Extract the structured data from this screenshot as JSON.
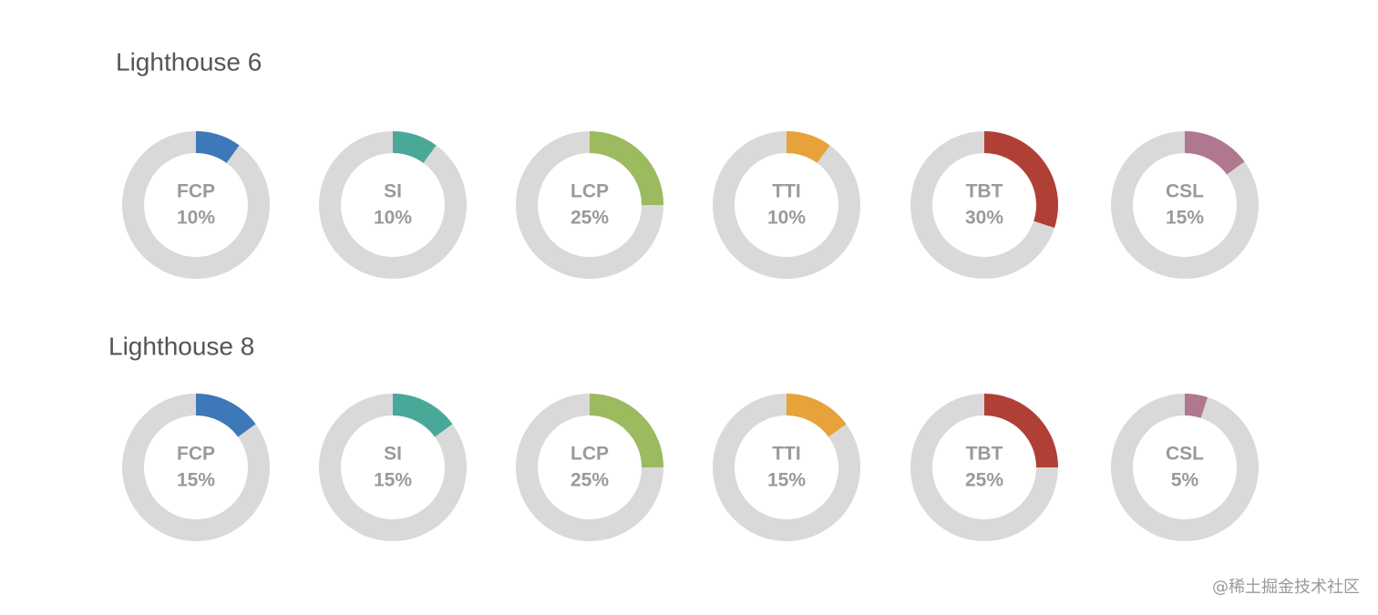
{
  "chart_data": [
    {
      "type": "donut",
      "title": "Lighthouse 6",
      "categories": [
        "FCP",
        "SI",
        "LCP",
        "TTI",
        "TBT",
        "CSL"
      ],
      "values": [
        10,
        10,
        25,
        10,
        30,
        15
      ],
      "value_labels": [
        "10%",
        "10%",
        "25%",
        "10%",
        "30%",
        "15%"
      ],
      "colors": [
        "#3d78b8",
        "#4aa899",
        "#9cba5e",
        "#e8a23a",
        "#b03f35",
        "#b07890"
      ],
      "track_color": "#d9d9d9"
    },
    {
      "type": "donut",
      "title": "Lighthouse 8",
      "categories": [
        "FCP",
        "SI",
        "LCP",
        "TTI",
        "TBT",
        "CSL"
      ],
      "values": [
        15,
        15,
        25,
        15,
        25,
        5
      ],
      "value_labels": [
        "15%",
        "15%",
        "25%",
        "15%",
        "25%",
        "5%"
      ],
      "colors": [
        "#3d78b8",
        "#4aa899",
        "#9cba5e",
        "#e8a23a",
        "#b03f35",
        "#b07890"
      ],
      "track_color": "#d9d9d9"
    }
  ],
  "watermark": "@稀土掘金技术社区"
}
